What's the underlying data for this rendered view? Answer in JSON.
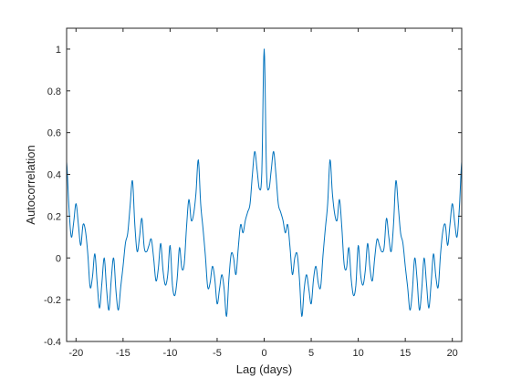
{
  "chart_data": {
    "type": "line",
    "title": "",
    "xlabel": "Lag (days)",
    "ylabel": "Autocorrelation",
    "xlim": [
      -21,
      21
    ],
    "ylim": [
      -0.4,
      1.1
    ],
    "xticks": [
      -20,
      -15,
      -10,
      -5,
      0,
      5,
      10,
      15,
      20
    ],
    "xtick_labels": [
      "-20",
      "-15",
      "-10",
      "-5",
      "0",
      "5",
      "10",
      "15",
      "20"
    ],
    "yticks": [
      -0.4,
      -0.2,
      0,
      0.2,
      0.4,
      0.6,
      0.8,
      1
    ],
    "ytick_labels": [
      "-0.4",
      "-0.2",
      "0",
      "0.2",
      "0.4",
      "0.6",
      "0.8",
      "1"
    ],
    "grid": false,
    "legend": "none",
    "line_color": "#0072bd",
    "axis_color": "#262626",
    "series": [
      {
        "x": [
          0,
          0.25,
          0.5,
          0.75,
          1,
          1.25,
          1.5,
          1.75,
          2,
          2.25,
          2.5,
          2.75,
          3,
          3.25,
          3.5,
          3.75,
          4,
          4.25,
          4.5,
          4.75,
          5,
          5.25,
          5.5,
          5.75,
          6,
          6.25,
          6.5,
          6.75,
          7,
          7.25,
          7.5,
          7.75,
          8,
          8.25,
          8.5,
          8.75,
          9,
          9.25,
          9.5,
          9.75,
          10,
          10.25,
          10.5,
          10.75,
          11,
          11.25,
          11.5,
          11.75,
          12,
          12.25,
          12.5,
          12.75,
          13,
          13.25,
          13.5,
          13.75,
          14,
          14.25,
          14.5,
          14.75,
          15,
          15.25,
          15.5,
          15.75,
          16,
          16.25,
          16.5,
          16.75,
          17,
          17.25,
          17.5,
          17.75,
          18,
          18.25,
          18.5,
          18.75,
          19,
          19.25,
          19.5,
          19.75,
          20,
          20.25,
          20.5,
          20.75,
          21
        ],
        "y": [
          1.0,
          0.41,
          0.33,
          0.42,
          0.51,
          0.4,
          0.26,
          0.22,
          0.18,
          0.12,
          0.16,
          0.05,
          -0.08,
          0.0,
          0.02,
          -0.1,
          -0.28,
          -0.15,
          -0.08,
          -0.15,
          -0.22,
          -0.1,
          -0.04,
          -0.12,
          -0.14,
          0.01,
          0.14,
          0.26,
          0.47,
          0.31,
          0.21,
          0.18,
          0.28,
          0.15,
          -0.03,
          -0.05,
          0.05,
          -0.1,
          -0.18,
          -0.13,
          0.06,
          -0.08,
          -0.13,
          -0.06,
          0.07,
          -0.05,
          -0.11,
          0.0,
          0.09,
          0.06,
          0.03,
          0.05,
          0.19,
          0.1,
          0.03,
          0.16,
          0.37,
          0.25,
          0.12,
          0.07,
          -0.04,
          -0.14,
          -0.25,
          -0.16,
          0.0,
          -0.1,
          -0.25,
          -0.15,
          0.0,
          -0.12,
          -0.24,
          -0.12,
          0.02,
          -0.09,
          -0.14,
          0.02,
          0.13,
          0.16,
          0.06,
          0.16,
          0.26,
          0.17,
          0.1,
          0.24,
          0.46
        ],
        "symmetric": true
      }
    ]
  }
}
